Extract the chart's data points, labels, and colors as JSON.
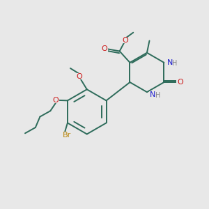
{
  "bg_color": "#e8e8e8",
  "bond_color": "#2d6b5a",
  "N_color": "#1a1acc",
  "O_color": "#cc1a1a",
  "Br_color": "#b8860b",
  "H_color": "#888888",
  "lw": 1.4,
  "dbo": 0.06,
  "xlim": [
    0,
    10
  ],
  "ylim": [
    0,
    10
  ]
}
